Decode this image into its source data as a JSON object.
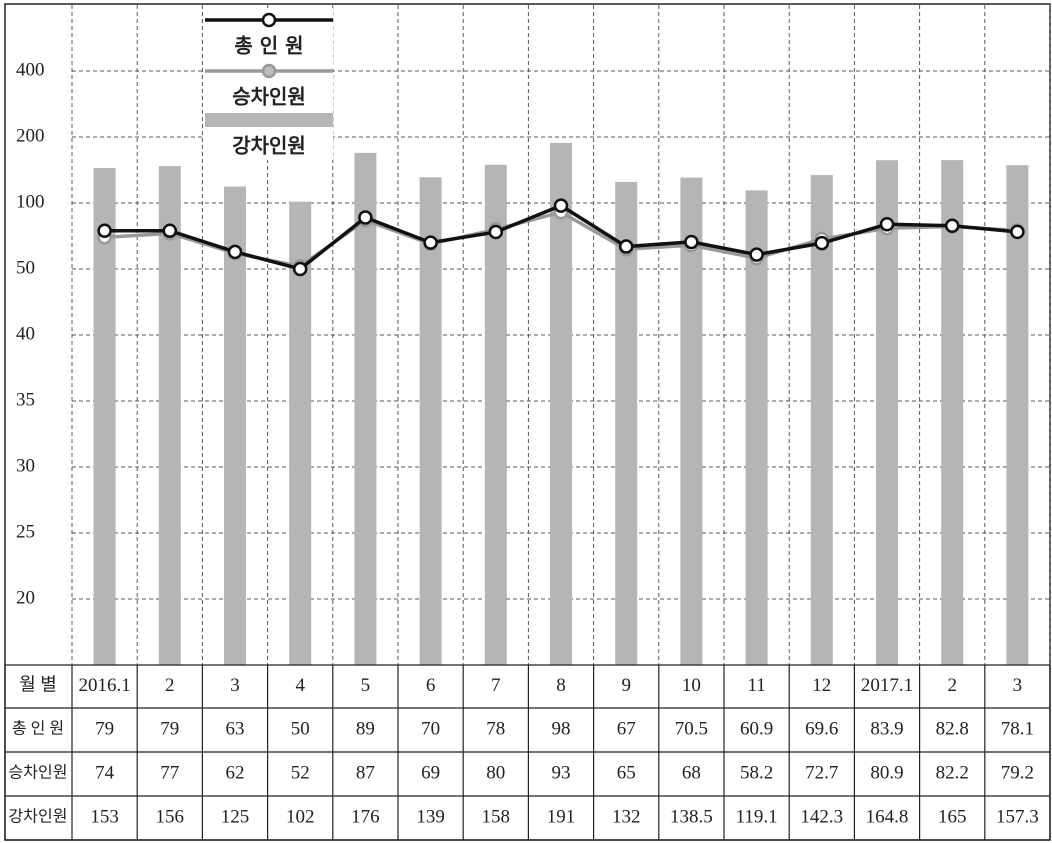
{
  "chart_data": {
    "type": "bar-line",
    "x_label": "월 별",
    "categories": [
      "2016.1",
      "2",
      "3",
      "4",
      "5",
      "6",
      "7",
      "8",
      "9",
      "10",
      "11",
      "12",
      "2017.1",
      "2",
      "3"
    ],
    "series": [
      {
        "name": "총 인 원",
        "kind": "line",
        "color": "#111111",
        "values": [
          79,
          79,
          63,
          50,
          89,
          70,
          78,
          98,
          67,
          70.5,
          60.9,
          69.6,
          83.9,
          82.8,
          78.1
        ]
      },
      {
        "name": "승차인원",
        "kind": "line",
        "color": "#999999",
        "values": [
          74,
          77,
          62,
          52,
          87,
          69,
          80,
          93,
          65,
          68,
          58.2,
          72.7,
          80.9,
          82.2,
          79.2
        ]
      },
      {
        "name": "강차인원",
        "kind": "bar",
        "color": "#b5b5b6",
        "values": [
          153,
          156,
          125,
          102,
          176,
          139,
          158,
          191,
          132,
          138.5,
          119.1,
          142.3,
          164.8,
          165,
          157.3
        ]
      }
    ],
    "ylim": [
      15,
      800
    ],
    "yticks": [
      20,
      25,
      30,
      35,
      40,
      50,
      100,
      200,
      400
    ],
    "grid": true
  }
}
